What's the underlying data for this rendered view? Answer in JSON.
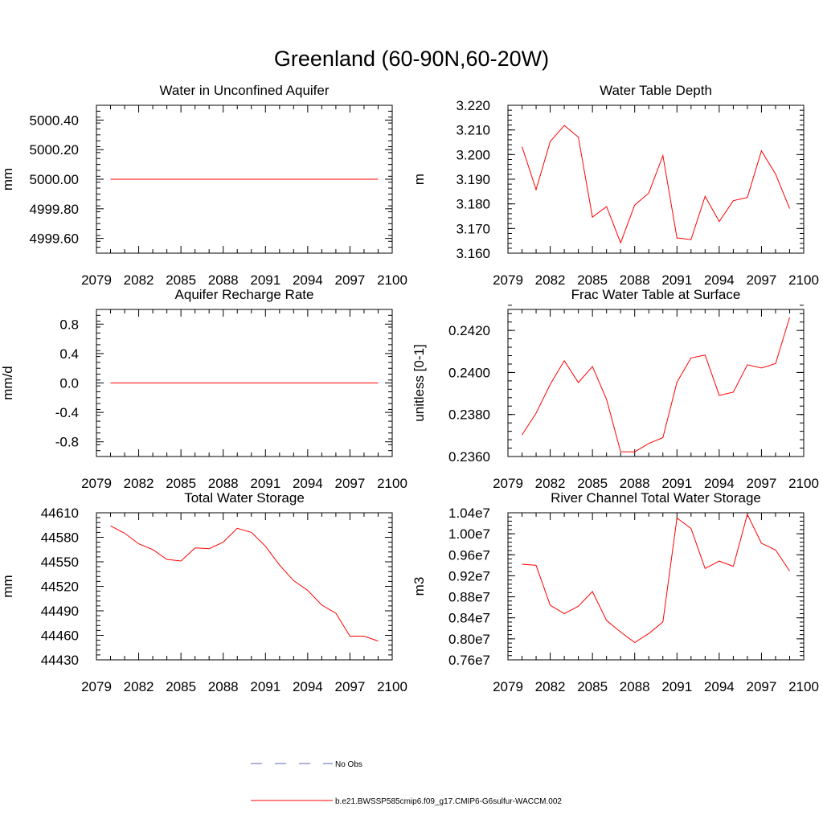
{
  "page_title": "Greenland (60-90N,60-20W)",
  "legend": {
    "obs_label": "No Obs",
    "obs_color": "#5b63b8",
    "model_label": "b.e21.BWSSP585cmip6.f09_g17.CMIP6-G6sulfur-WACCM.002",
    "model_color": "#ff0000"
  },
  "chart_data": [
    {
      "type": "line",
      "title": "Water in Unconfined Aquifer",
      "ylabel": "mm",
      "xlim": [
        2079,
        2100
      ],
      "ylim": [
        4999.5,
        5000.5
      ],
      "xticks": [
        "2079",
        "2082",
        "2085",
        "2088",
        "2091",
        "2094",
        "2097",
        "2100"
      ],
      "yticks": [
        {
          "value": 5000.4,
          "label": "5000.40"
        },
        {
          "value": 5000.2,
          "label": "5000.20"
        },
        {
          "value": 5000.0,
          "label": "5000.00"
        },
        {
          "value": 4999.8,
          "label": "4999.80"
        },
        {
          "value": 4999.6,
          "label": "4999.60"
        }
      ],
      "yminor": 0.04,
      "x": [
        2080,
        2081,
        2082,
        2083,
        2084,
        2085,
        2086,
        2087,
        2088,
        2089,
        2090,
        2091,
        2092,
        2093,
        2094,
        2095,
        2096,
        2097,
        2098,
        2099
      ],
      "series": [
        {
          "values": [
            5000,
            5000,
            5000,
            5000,
            5000,
            5000,
            5000,
            5000,
            5000,
            5000,
            5000,
            5000,
            5000,
            5000,
            5000,
            5000,
            5000,
            5000,
            5000,
            5000
          ]
        }
      ]
    },
    {
      "type": "line",
      "title": "Water Table Depth",
      "ylabel": "m",
      "xlim": [
        2079,
        2100
      ],
      "ylim": [
        3.16,
        3.22
      ],
      "xticks": [
        "2079",
        "2082",
        "2085",
        "2088",
        "2091",
        "2094",
        "2097",
        "2100"
      ],
      "yticks": [
        {
          "value": 3.22,
          "label": "3.220"
        },
        {
          "value": 3.21,
          "label": "3.210"
        },
        {
          "value": 3.2,
          "label": "3.200"
        },
        {
          "value": 3.19,
          "label": "3.190"
        },
        {
          "value": 3.18,
          "label": "3.180"
        },
        {
          "value": 3.17,
          "label": "3.170"
        },
        {
          "value": 3.16,
          "label": "3.160"
        }
      ],
      "yminor": 0.002,
      "x": [
        2080,
        2081,
        2082,
        2083,
        2084,
        2085,
        2086,
        2087,
        2088,
        2089,
        2090,
        2091,
        2092,
        2093,
        2094,
        2095,
        2096,
        2097,
        2098,
        2099
      ],
      "series": [
        {
          "values": [
            3.2032,
            3.1858,
            3.2053,
            3.2118,
            3.2071,
            3.1746,
            3.1789,
            3.1642,
            3.1795,
            3.1844,
            3.1996,
            3.1662,
            3.1655,
            3.1831,
            3.1728,
            3.1813,
            3.1826,
            3.2015,
            3.1921,
            3.1781
          ]
        }
      ]
    },
    {
      "type": "line",
      "title": "Aquifer Recharge Rate",
      "ylabel": "mm/d",
      "xlim": [
        2079,
        2100
      ],
      "ylim": [
        -1.0,
        1.0
      ],
      "xticks": [
        "2079",
        "2082",
        "2085",
        "2088",
        "2091",
        "2094",
        "2097",
        "2100"
      ],
      "yticks": [
        {
          "value": 0.8,
          "label": "0.8"
        },
        {
          "value": 0.4,
          "label": "0.4"
        },
        {
          "value": 0.0,
          "label": "0.0"
        },
        {
          "value": -0.4,
          "label": "-0.4"
        },
        {
          "value": -0.8,
          "label": "-0.8"
        }
      ],
      "yminor": 0.08,
      "x": [
        2080,
        2081,
        2082,
        2083,
        2084,
        2085,
        2086,
        2087,
        2088,
        2089,
        2090,
        2091,
        2092,
        2093,
        2094,
        2095,
        2096,
        2097,
        2098,
        2099
      ],
      "series": [
        {
          "values": [
            0,
            0,
            0,
            0,
            0,
            0,
            0,
            0,
            0,
            0,
            0,
            0,
            0,
            0,
            0,
            0,
            0,
            0,
            0,
            0
          ]
        }
      ]
    },
    {
      "type": "line",
      "title": "Frac Water Table at Surface",
      "ylabel": "unitless [0-1]",
      "xlim": [
        2079,
        2100
      ],
      "ylim": [
        0.236,
        0.243
      ],
      "xticks": [
        "2079",
        "2082",
        "2085",
        "2088",
        "2091",
        "2094",
        "2097",
        "2100"
      ],
      "yticks": [
        {
          "value": 0.242,
          "label": "0.2420"
        },
        {
          "value": 0.24,
          "label": "0.2400"
        },
        {
          "value": 0.238,
          "label": "0.2380"
        },
        {
          "value": 0.236,
          "label": "0.2360"
        }
      ],
      "yminor": 0.0004,
      "x": [
        2080,
        2081,
        2082,
        2083,
        2084,
        2085,
        2086,
        2087,
        2088,
        2089,
        2090,
        2091,
        2092,
        2093,
        2094,
        2095,
        2096,
        2097,
        2098,
        2099
      ],
      "series": [
        {
          "values": [
            0.23703,
            0.23806,
            0.23943,
            0.24056,
            0.23952,
            0.24028,
            0.23872,
            0.23623,
            0.23622,
            0.23662,
            0.2369,
            0.23954,
            0.24069,
            0.24083,
            0.23891,
            0.23906,
            0.24037,
            0.24021,
            0.24042,
            0.24262
          ]
        }
      ]
    },
    {
      "type": "line",
      "title": "Total Water Storage",
      "ylabel": "mm",
      "xlim": [
        2079,
        2100
      ],
      "ylim": [
        44430,
        44610
      ],
      "xticks": [
        "2079",
        "2082",
        "2085",
        "2088",
        "2091",
        "2094",
        "2097",
        "2100"
      ],
      "yticks": [
        {
          "value": 44610,
          "label": "44610"
        },
        {
          "value": 44580,
          "label": "44580"
        },
        {
          "value": 44550,
          "label": "44550"
        },
        {
          "value": 44520,
          "label": "44520"
        },
        {
          "value": 44490,
          "label": "44490"
        },
        {
          "value": 44460,
          "label": "44460"
        },
        {
          "value": 44430,
          "label": "44430"
        }
      ],
      "yminor": 6,
      "x": [
        2080,
        2081,
        2082,
        2083,
        2084,
        2085,
        2086,
        2087,
        2088,
        2089,
        2090,
        2091,
        2092,
        2093,
        2094,
        2095,
        2096,
        2097,
        2098,
        2099
      ],
      "series": [
        {
          "values": [
            44594,
            44585,
            44572,
            44565,
            44553,
            44551,
            44567,
            44566,
            44574,
            44591,
            44586,
            44569,
            44546,
            44527,
            44515,
            44497,
            44487,
            44459,
            44459,
            44453
          ]
        }
      ]
    },
    {
      "type": "line",
      "title": "River Channel Total Water Storage",
      "ylabel": "m3",
      "xlim": [
        2079,
        2100
      ],
      "ylim": [
        7600000,
        10400000
      ],
      "xticks": [
        "2079",
        "2082",
        "2085",
        "2088",
        "2091",
        "2094",
        "2097",
        "2100"
      ],
      "yticks": [
        {
          "value": 10400000,
          "label": "1.04e7"
        },
        {
          "value": 10000000,
          "label": "1.00e7"
        },
        {
          "value": 9600000,
          "label": "0.96e7"
        },
        {
          "value": 9200000,
          "label": "0.92e7"
        },
        {
          "value": 8800000,
          "label": "0.88e7"
        },
        {
          "value": 8400000,
          "label": "0.84e7"
        },
        {
          "value": 8000000,
          "label": "0.80e7"
        },
        {
          "value": 7600000,
          "label": "0.76e7"
        }
      ],
      "yminor": 80000,
      "x": [
        2080,
        2081,
        2082,
        2083,
        2084,
        2085,
        2086,
        2087,
        2088,
        2089,
        2090,
        2091,
        2092,
        2093,
        2094,
        2095,
        2096,
        2097,
        2098,
        2099
      ],
      "series": [
        {
          "values": [
            9420000,
            9400000,
            8640000,
            8480000,
            8620000,
            8900000,
            8350000,
            8130000,
            7930000,
            8100000,
            8320000,
            10300000,
            10100000,
            9340000,
            9480000,
            9380000,
            10370000,
            9820000,
            9690000,
            9290000
          ]
        }
      ]
    }
  ]
}
